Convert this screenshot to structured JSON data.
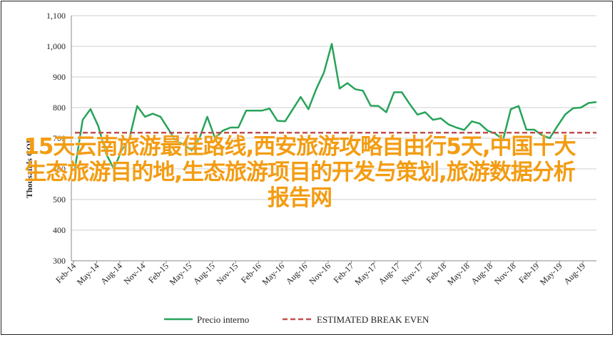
{
  "chart_data": {
    "type": "line",
    "ylabel": "Thousands COP",
    "ylim": [
      300,
      1100
    ],
    "yticks": [
      300,
      400,
      500,
      600,
      700,
      800,
      900,
      1000,
      1100
    ],
    "ytick_labels": [
      "300",
      "400",
      "500",
      "600",
      "700",
      "800",
      "900",
      "1,000",
      "1,100"
    ],
    "xtick_labels": [
      "Feb-14",
      "May-14",
      "Aug-14",
      "Nov-14",
      "Feb-15",
      "May-15",
      "Aug-15",
      "Nov-15",
      "Feb-16",
      "May-16",
      "Aug-16",
      "Nov-16",
      "Feb-17",
      "May-17",
      "Aug-17",
      "Nov-17",
      "Feb-18",
      "May-18",
      "Aug-18",
      "Nov-18",
      "Feb-19",
      "May-19",
      "Aug-19"
    ],
    "grid": true,
    "legend_position": "bottom",
    "series": [
      {
        "name": "Precio interno",
        "color": "#27a35a",
        "style": "solid",
        "values": [
          600,
          760,
          795,
          740,
          650,
          600,
          660,
          700,
          805,
          770,
          780,
          770,
          730,
          690,
          680,
          660,
          700,
          770,
          700,
          725,
          735,
          735,
          790,
          790,
          790,
          797,
          757,
          755,
          795,
          835,
          795,
          860,
          915,
          1008,
          862,
          880,
          860,
          855,
          806,
          805,
          785,
          850,
          850,
          812,
          777,
          785,
          760,
          765,
          745,
          735,
          727,
          755,
          748,
          725,
          715,
          695,
          795,
          805,
          728,
          728,
          710,
          700,
          740,
          778,
          798,
          800,
          815,
          818
        ]
      },
      {
        "name": "ESTIMATED BREAK EVEN",
        "color": "#c0504d",
        "style": "dashed",
        "values": [
          718,
          718,
          718,
          718,
          718,
          718,
          718,
          718,
          718,
          718,
          718,
          718,
          718,
          718,
          718,
          718,
          718,
          718,
          718,
          718,
          718,
          718,
          718,
          718,
          718,
          718,
          718,
          718,
          718,
          718,
          718,
          718,
          718,
          718,
          718,
          718,
          718,
          718,
          718,
          718,
          718,
          718,
          718,
          718,
          718,
          718,
          718,
          718,
          718,
          718,
          718,
          718,
          718,
          718,
          718,
          718,
          718,
          718,
          718,
          718,
          718,
          718,
          718,
          718,
          718,
          718,
          718,
          718
        ]
      }
    ]
  },
  "overlay_text": "15天云南旅游最佳路线,西安旅游攻略自由行5天,中国十大生态旅游目的地,生态旅游项目的开发与策划,旅游数据分析报告网"
}
